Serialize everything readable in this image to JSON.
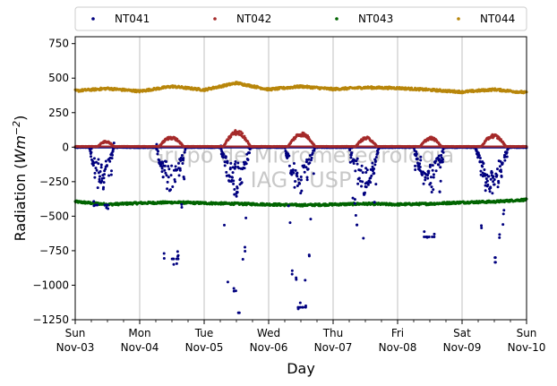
{
  "chart_data": {
    "type": "scatter",
    "xlabel": "Day",
    "ylabel_main": "Radiation (",
    "ylabel_unit_base": "Wm",
    "ylabel_unit_exp": "−2",
    "ylabel_close": ")",
    "ylim": [
      -1250,
      800
    ],
    "yticks": [
      -1250,
      -1000,
      -750,
      -500,
      -250,
      0,
      250,
      500,
      750
    ],
    "ytick_labels": [
      "−1250",
      "−1000",
      "−750",
      "−500",
      "−250",
      "0",
      "250",
      "500",
      "750"
    ],
    "x_unit": "days since Sun Nov-03",
    "xlim": [
      0,
      7
    ],
    "xticks": [
      {
        "day": "Sun",
        "date": "Nov-03"
      },
      {
        "day": "Mon",
        "date": "Nov-04"
      },
      {
        "day": "Tue",
        "date": "Nov-05"
      },
      {
        "day": "Wed",
        "date": "Nov-06"
      },
      {
        "day": "Thu",
        "date": "Nov-07"
      },
      {
        "day": "Fri",
        "date": "Nov-08"
      },
      {
        "day": "Sat",
        "date": "Nov-09"
      },
      {
        "day": "Sun",
        "date": "Nov-10"
      }
    ],
    "grid": "vertical",
    "legend_position": "top",
    "watermark_line1": "Grupo de Micrometeorologia",
    "watermark_line2": "IAG - USP",
    "series": [
      {
        "name": "NT041",
        "color": "#00007f",
        "baseline": [
          [
            0,
            -2
          ],
          [
            7,
            -2
          ]
        ],
        "night_floor": -6,
        "day_windows": [
          [
            0.22,
            0.6
          ],
          [
            1.25,
            1.72
          ],
          [
            2.25,
            2.72
          ],
          [
            3.25,
            3.72
          ],
          [
            4.25,
            4.72
          ],
          [
            5.25,
            5.72
          ],
          [
            6.2,
            6.72
          ]
        ],
        "day_min": [
          -420,
          -810,
          -1200,
          -1160,
          -660,
          -650,
          -800
        ]
      },
      {
        "name": "NT042",
        "color": "#a52a2a",
        "baseline": [
          [
            0,
            5
          ],
          [
            7,
            5
          ]
        ],
        "day_windows": [
          [
            0.35,
            0.6
          ],
          [
            1.3,
            1.68
          ],
          [
            2.3,
            2.72
          ],
          [
            3.3,
            3.72
          ],
          [
            4.35,
            4.68
          ],
          [
            5.35,
            5.68
          ],
          [
            6.3,
            6.68
          ]
        ],
        "day_peak": [
          40,
          75,
          120,
          105,
          70,
          70,
          90
        ]
      },
      {
        "name": "NT043",
        "color": "#006400",
        "curve": [
          [
            0,
            -395
          ],
          [
            0.5,
            -415
          ],
          [
            1,
            -405
          ],
          [
            1.5,
            -400
          ],
          [
            2,
            -405
          ],
          [
            2.5,
            -410
          ],
          [
            3,
            -415
          ],
          [
            3.5,
            -420
          ],
          [
            4,
            -415
          ],
          [
            4.5,
            -410
          ],
          [
            5,
            -415
          ],
          [
            5.5,
            -410
          ],
          [
            6,
            -400
          ],
          [
            6.5,
            -395
          ],
          [
            7,
            -380
          ]
        ]
      },
      {
        "name": "NT044",
        "color": "#b8860b",
        "curve": [
          [
            0,
            408
          ],
          [
            0.5,
            425
          ],
          [
            1,
            405
          ],
          [
            1.5,
            440
          ],
          [
            2,
            415
          ],
          [
            2.5,
            465
          ],
          [
            3,
            418
          ],
          [
            3.5,
            440
          ],
          [
            4,
            420
          ],
          [
            4.5,
            432
          ],
          [
            5,
            428
          ],
          [
            5.5,
            415
          ],
          [
            6,
            400
          ],
          [
            6.5,
            418
          ],
          [
            7,
            395
          ]
        ]
      }
    ]
  }
}
